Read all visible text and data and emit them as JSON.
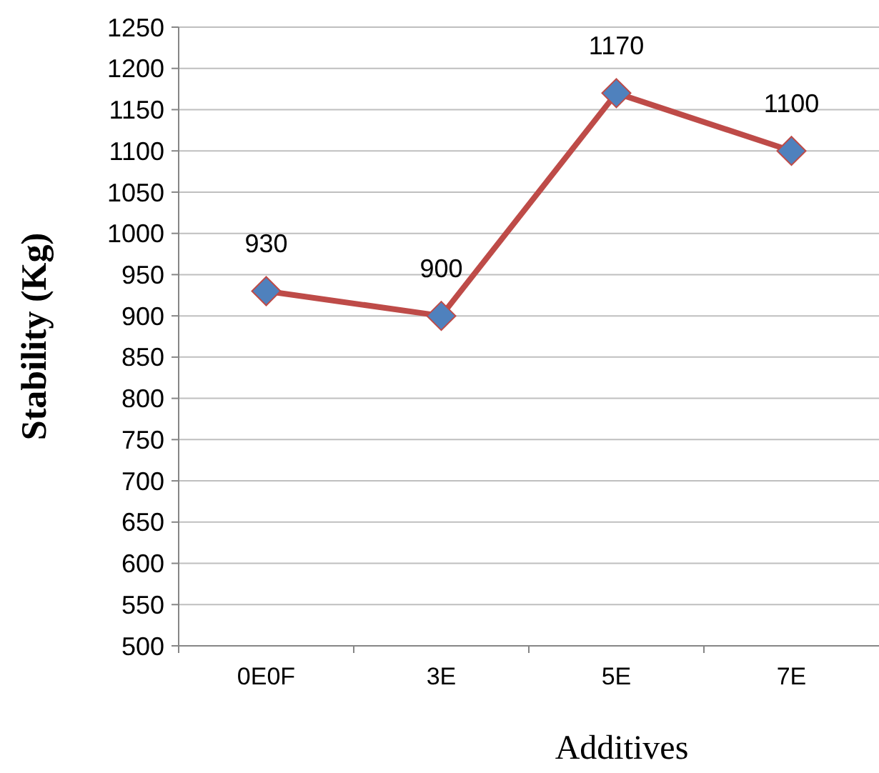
{
  "chart_data": {
    "type": "line",
    "xlabel": "Additives",
    "ylabel": "Stability (Kg)",
    "categories": [
      "0E0F",
      "3E",
      "5E",
      "7E"
    ],
    "series": [
      {
        "color": "#be4b48",
        "colors": [
          "#4f81bd",
          "#4f81bd",
          "#4f81bd",
          "#4f81bd"
        ],
        "values": [
          930,
          900,
          1170,
          1100
        ]
      }
    ],
    "ylim": [
      500,
      1250
    ],
    "yticks": [
      500,
      550,
      600,
      650,
      700,
      750,
      800,
      850,
      900,
      950,
      1000,
      1050,
      1100,
      1150,
      1200,
      1250
    ],
    "grid": "y",
    "marker": "diamond",
    "line_style": "solid",
    "data_labels": true
  }
}
